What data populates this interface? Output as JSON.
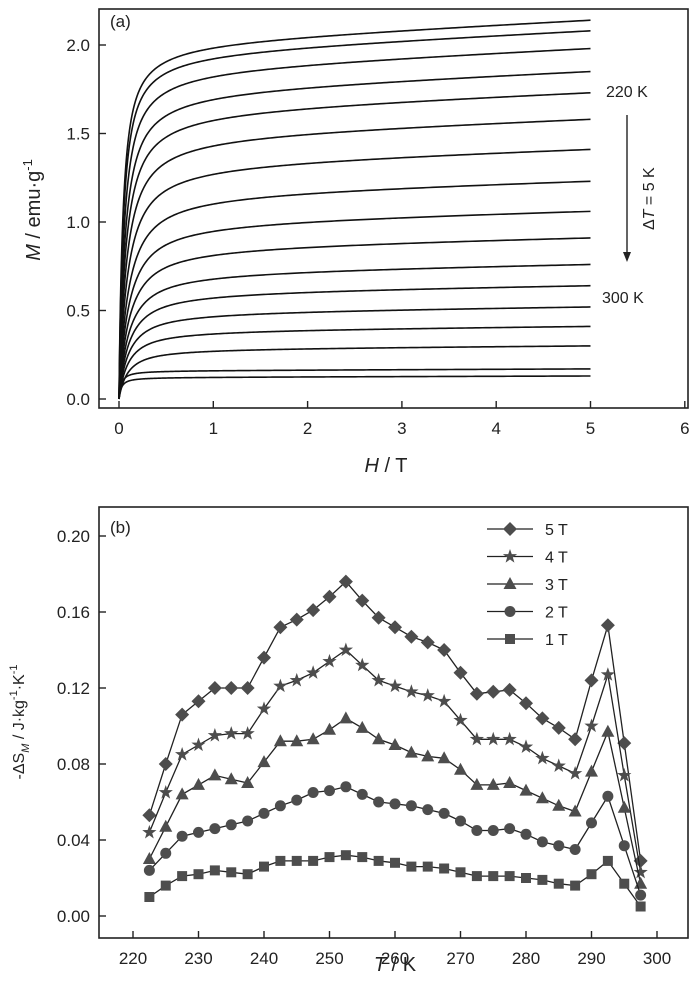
{
  "chart_data": [
    {
      "type": "line",
      "panel_label": "(a)",
      "xlabel_italic": "H",
      "xlabel_rest": " / T",
      "ylabel_italic": "M",
      "ylabel_rest": " / emu·g",
      "ylabel_sup": "-1",
      "xlim": [
        -0.2,
        6
      ],
      "ylim": [
        -0.05,
        2.2
      ],
      "xticks": [
        0,
        1,
        2,
        3,
        4,
        5,
        6
      ],
      "xtick_labels": [
        "0",
        "1",
        "2",
        "3",
        "4",
        "5",
        "6"
      ],
      "yticks": [
        0.0,
        0.5,
        1.0,
        1.5,
        2.0
      ],
      "ytick_labels": [
        "0.0",
        "0.5",
        "1.0",
        "1.5",
        "2.0"
      ],
      "annotations": {
        "top_label": "220 K",
        "bottom_label": "300 K",
        "arrow_label_delta": "Δ",
        "arrow_label_T": "T",
        "arrow_label_rest": " = 5 K"
      },
      "x_max": 5,
      "series_note": "Isothermal magnetization curves from 220 K to 300 K in 5 K steps; values listed are M at H = 5 T",
      "series": [
        {
          "name": "220 K",
          "m_at_5T": 2.14,
          "knee": 0.1
        },
        {
          "name": "225 K",
          "m_at_5T": 2.08,
          "knee": 0.11
        },
        {
          "name": "230 K",
          "m_at_5T": 1.98,
          "knee": 0.13
        },
        {
          "name": "235 K",
          "m_at_5T": 1.85,
          "knee": 0.15
        },
        {
          "name": "240 K",
          "m_at_5T": 1.73,
          "knee": 0.17
        },
        {
          "name": "245 K",
          "m_at_5T": 1.58,
          "knee": 0.19
        },
        {
          "name": "250 K",
          "m_at_5T": 1.41,
          "knee": 0.21
        },
        {
          "name": "255 K",
          "m_at_5T": 1.23,
          "knee": 0.23
        },
        {
          "name": "260 K",
          "m_at_5T": 1.06,
          "knee": 0.24
        },
        {
          "name": "265 K",
          "m_at_5T": 0.91,
          "knee": 0.25
        },
        {
          "name": "270 K",
          "m_at_5T": 0.76,
          "knee": 0.25
        },
        {
          "name": "275 K",
          "m_at_5T": 0.64,
          "knee": 0.25
        },
        {
          "name": "280 K",
          "m_at_5T": 0.52,
          "knee": 0.24
        },
        {
          "name": "285 K",
          "m_at_5T": 0.41,
          "knee": 0.23
        },
        {
          "name": "290 K",
          "m_at_5T": 0.3,
          "knee": 0.22
        },
        {
          "name": "295 K",
          "m_at_5T": 0.17,
          "knee": 0.06
        },
        {
          "name": "300 K",
          "m_at_5T": 0.13,
          "knee": 0.06
        }
      ]
    },
    {
      "type": "line",
      "panel_label": "(b)",
      "xlabel_italic": "T",
      "xlabel_rest": " / K",
      "ylabel_pre": "-ΔS",
      "ylabel_sub": "M",
      "ylabel_mid": " / J·kg",
      "ylabel_sup1": "-1",
      "ylabel_mid2": "·K",
      "ylabel_sup2": "-1",
      "xlim": [
        215,
        307
      ],
      "ylim": [
        -0.012,
        0.2
      ],
      "xticks": [
        220,
        230,
        240,
        250,
        260,
        270,
        280,
        290,
        300
      ],
      "xtick_labels": [
        "220",
        "230",
        "240",
        "250",
        "260",
        "270",
        "280",
        "290",
        "300"
      ],
      "yticks": [
        0.0,
        0.04,
        0.08,
        0.12,
        0.16,
        0.2
      ],
      "ytick_labels": [
        "0.00",
        "0.04",
        "0.08",
        "0.12",
        "0.16",
        "0.20"
      ],
      "legend_position": "top-right",
      "marker_color": "#4d4d4d",
      "x": [
        222.5,
        225,
        227.5,
        230,
        232.5,
        235,
        237.5,
        240,
        242.5,
        245,
        247.5,
        250,
        252.5,
        255,
        257.5,
        260,
        262.5,
        265,
        267.5,
        270,
        272.5,
        275,
        277.5,
        280,
        282.5,
        285,
        287.5,
        290,
        292.5,
        295,
        297.5
      ],
      "series": [
        {
          "name": "5 T",
          "marker": "diamond",
          "values": [
            0.053,
            0.08,
            0.106,
            0.113,
            0.12,
            0.12,
            0.12,
            0.136,
            0.152,
            0.156,
            0.161,
            0.168,
            0.176,
            0.166,
            0.157,
            0.152,
            0.147,
            0.144,
            0.14,
            0.128,
            0.117,
            0.118,
            0.119,
            0.112,
            0.104,
            0.099,
            0.093,
            0.124,
            0.153,
            0.091,
            0.029
          ]
        },
        {
          "name": "4 T",
          "marker": "star",
          "values": [
            0.044,
            0.065,
            0.085,
            0.09,
            0.095,
            0.096,
            0.096,
            0.109,
            0.121,
            0.124,
            0.128,
            0.134,
            0.14,
            0.132,
            0.124,
            0.121,
            0.118,
            0.116,
            0.113,
            0.103,
            0.093,
            0.093,
            0.093,
            0.089,
            0.083,
            0.079,
            0.075,
            0.1,
            0.127,
            0.074,
            0.023
          ]
        },
        {
          "name": "3 T",
          "marker": "triangle",
          "values": [
            0.03,
            0.047,
            0.064,
            0.069,
            0.074,
            0.072,
            0.07,
            0.081,
            0.092,
            0.092,
            0.093,
            0.098,
            0.104,
            0.099,
            0.093,
            0.09,
            0.086,
            0.084,
            0.083,
            0.077,
            0.069,
            0.069,
            0.07,
            0.066,
            0.062,
            0.058,
            0.055,
            0.076,
            0.097,
            0.057,
            0.017
          ]
        },
        {
          "name": "2 T",
          "marker": "circle",
          "values": [
            0.024,
            0.033,
            0.042,
            0.044,
            0.046,
            0.048,
            0.05,
            0.054,
            0.058,
            0.061,
            0.065,
            0.066,
            0.068,
            0.064,
            0.06,
            0.059,
            0.058,
            0.056,
            0.054,
            0.05,
            0.045,
            0.045,
            0.046,
            0.043,
            0.039,
            0.037,
            0.035,
            0.049,
            0.063,
            0.037,
            0.011
          ]
        },
        {
          "name": "1 T",
          "marker": "square",
          "values": [
            0.01,
            0.016,
            0.021,
            0.022,
            0.024,
            0.023,
            0.022,
            0.026,
            0.029,
            0.029,
            0.029,
            0.031,
            0.032,
            0.031,
            0.029,
            0.028,
            0.026,
            0.026,
            0.025,
            0.023,
            0.021,
            0.021,
            0.021,
            0.02,
            0.019,
            0.017,
            0.016,
            0.022,
            0.029,
            0.017,
            0.005
          ]
        }
      ]
    }
  ]
}
